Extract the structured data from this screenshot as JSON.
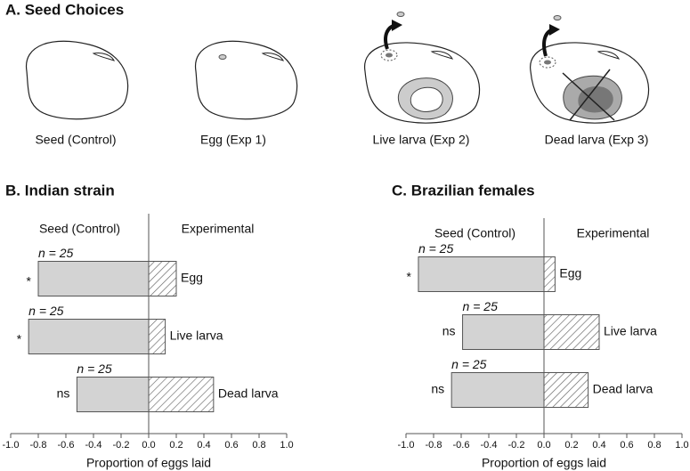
{
  "panel_a": {
    "title": "A. Seed Choices",
    "labels": [
      "Seed (Control)",
      "Egg (Exp 1)",
      "Live larva (Exp 2)",
      "Dead larva (Exp 3)"
    ]
  },
  "chart_data": [
    {
      "type": "bar",
      "orientation": "horizontal",
      "title": "B. Indian strain",
      "categories": [
        "Egg",
        "Live larva",
        "Dead larva"
      ],
      "series": [
        {
          "name": "Seed (Control)",
          "color": "#d3d3d3",
          "values": [
            -0.8,
            -0.87,
            -0.52
          ]
        },
        {
          "name": "Experimental",
          "color": "#ffffff",
          "hatch": true,
          "values": [
            0.2,
            0.12,
            0.47
          ]
        }
      ],
      "sample_sizes": [
        "n = 25",
        "n = 25",
        "n = 25"
      ],
      "significance": [
        "*",
        "*",
        "ns"
      ],
      "xlabel": "Proportion of eggs laid",
      "xlim": [
        -1,
        1
      ],
      "xticks": [
        {
          "value": -1,
          "label": "-1.0"
        },
        -0.8,
        -0.6,
        -0.4,
        -0.2,
        {
          "value": 0,
          "label": "0.0"
        },
        0.2,
        0.4,
        0.6,
        0.8,
        {
          "value": 1,
          "label": "1.0"
        }
      ]
    },
    {
      "type": "bar",
      "orientation": "horizontal",
      "title": "C. Brazilian females",
      "categories": [
        "Egg",
        "Live larva",
        "Dead larva"
      ],
      "series": [
        {
          "name": "Seed (Control)",
          "color": "#d3d3d3",
          "values": [
            -0.91,
            -0.59,
            -0.67
          ]
        },
        {
          "name": "Experimental",
          "color": "#ffffff",
          "hatch": true,
          "values": [
            0.08,
            0.4,
            0.32
          ]
        }
      ],
      "sample_sizes": [
        "n = 25",
        "n = 25",
        "n = 25"
      ],
      "significance": [
        "*",
        "ns",
        "ns"
      ],
      "xlabel": "Proportion of eggs laid",
      "xlim": [
        -1,
        1
      ],
      "xticks": [
        {
          "value": -1,
          "label": "-1.0"
        },
        -0.8,
        -0.6,
        -0.4,
        -0.2,
        {
          "value": 0,
          "label": "0.0"
        },
        0.2,
        0.4,
        0.6,
        0.8,
        {
          "value": 1,
          "label": "1.0"
        }
      ]
    }
  ]
}
